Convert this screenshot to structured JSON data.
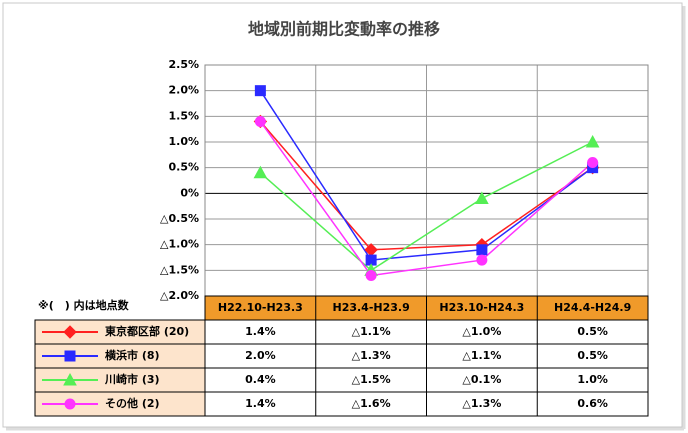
{
  "chart_data": {
    "type": "line",
    "title": "地域別前期比変動率の推移",
    "note": "※(　) 内は地点数",
    "categories": [
      "H22.10-H23.3",
      "H23.4-H23.9",
      "H23.10-H24.3",
      "H24.4-H24.9"
    ],
    "series": [
      {
        "name": "東京都区部 (20)",
        "color": "#ff2020",
        "marker": "diamond",
        "values": [
          1.4,
          -1.1,
          -1.0,
          0.5
        ],
        "value_labels": [
          "1.4%",
          "△1.1%",
          "△1.0%",
          "0.5%"
        ]
      },
      {
        "name": "横浜市 (8)",
        "color": "#2a2aff",
        "marker": "square",
        "values": [
          2.0,
          -1.3,
          -1.1,
          0.5
        ],
        "value_labels": [
          "2.0%",
          "△1.3%",
          "△1.1%",
          "0.5%"
        ]
      },
      {
        "name": "川崎市 (3)",
        "color": "#55ee55",
        "marker": "triangle",
        "values": [
          0.4,
          -1.5,
          -0.1,
          1.0
        ],
        "value_labels": [
          "0.4%",
          "△1.5%",
          "△0.1%",
          "1.0%"
        ]
      },
      {
        "name": "その他 (2)",
        "color": "#ff33ff",
        "marker": "circle",
        "values": [
          1.4,
          -1.6,
          -1.3,
          0.6
        ],
        "value_labels": [
          "1.4%",
          "△1.6%",
          "△1.3%",
          "0.6%"
        ]
      }
    ],
    "ylim": [
      -2.0,
      2.5
    ],
    "yticks": [
      {
        "value": 2.5,
        "label": "2.5%"
      },
      {
        "value": 2.0,
        "label": "2.0%"
      },
      {
        "value": 1.5,
        "label": "1.5%"
      },
      {
        "value": 1.0,
        "label": "1.0%"
      },
      {
        "value": 0.5,
        "label": "0.5%"
      },
      {
        "value": 0,
        "label": "0%"
      },
      {
        "value": -0.5,
        "label": "△0.5%"
      },
      {
        "value": -1.0,
        "label": "△1.0%"
      },
      {
        "value": -1.5,
        "label": "△1.5%"
      },
      {
        "value": -2.0,
        "label": "△2.0%"
      }
    ],
    "grid": true
  }
}
